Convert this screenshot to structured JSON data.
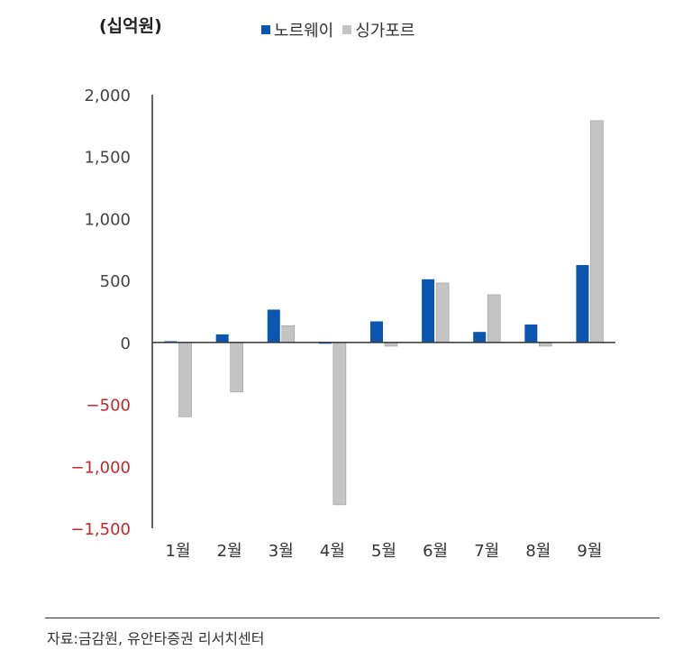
{
  "chart_data": {
    "type": "bar",
    "unit_label": "(십억원)",
    "categories": [
      "1월",
      "2월",
      "3월",
      "4월",
      "5월",
      "6월",
      "7월",
      "8월",
      "9월"
    ],
    "series": [
      {
        "name": "노르웨이",
        "color": "#0b57b0",
        "values": [
          10,
          65,
          265,
          -10,
          170,
          510,
          85,
          145,
          625
        ]
      },
      {
        "name": "싱가포르",
        "color": "#c4c4c4",
        "values": [
          -600,
          -400,
          135,
          -1310,
          -30,
          480,
          385,
          -30,
          1790
        ]
      }
    ],
    "ylim": [
      -1500,
      2000
    ],
    "yticks": [
      2000,
      1500,
      1000,
      500,
      0,
      -500,
      -1000,
      -1500
    ],
    "ytick_labels": [
      "2,000",
      "1,500",
      "1,000",
      "500",
      "0",
      "−500",
      "−1,000",
      "−1,500"
    ],
    "negative_tick_color": "#c0282c",
    "legend_position": "top",
    "grid": false
  },
  "source": "자료:금감원, 유안타증권 리서치센터"
}
